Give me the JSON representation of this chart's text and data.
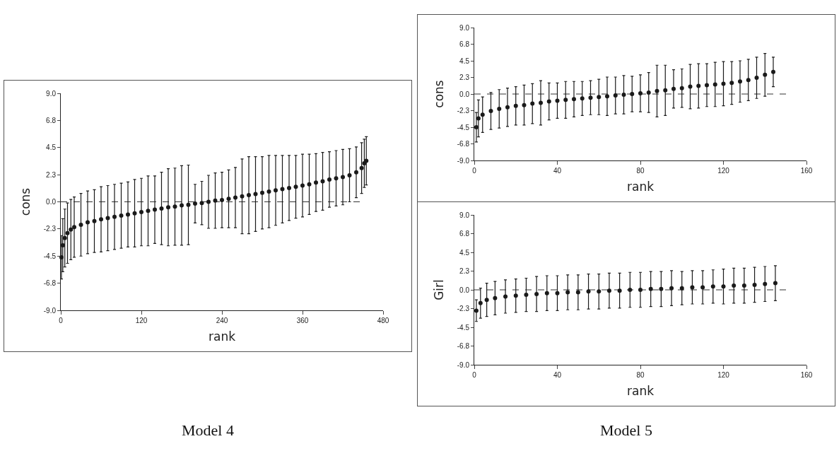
{
  "chart_data": [
    {
      "type": "scatter",
      "xlabel": "rank",
      "ylabel": "cons",
      "color": "#1a1a1a",
      "marker": "circle",
      "grid": false,
      "x": [
        1,
        3,
        6,
        10,
        15,
        20,
        30,
        40,
        50,
        60,
        70,
        80,
        90,
        100,
        110,
        120,
        130,
        140,
        150,
        160,
        170,
        180,
        190,
        200,
        210,
        220,
        230,
        240,
        250,
        260,
        270,
        280,
        290,
        300,
        310,
        320,
        330,
        340,
        350,
        360,
        370,
        380,
        390,
        400,
        410,
        420,
        430,
        440,
        448,
        452,
        455
      ],
      "values": [
        -4.6,
        -3.6,
        -3.0,
        -2.6,
        -2.3,
        -2.1,
        -1.9,
        -1.7,
        -1.6,
        -1.45,
        -1.35,
        -1.25,
        -1.15,
        -1.05,
        -0.95,
        -0.85,
        -0.75,
        -0.65,
        -0.55,
        -0.45,
        -0.4,
        -0.3,
        -0.25,
        -0.15,
        -0.1,
        0.0,
        0.1,
        0.15,
        0.25,
        0.35,
        0.45,
        0.55,
        0.65,
        0.75,
        0.85,
        0.95,
        1.05,
        1.15,
        1.25,
        1.35,
        1.45,
        1.6,
        1.7,
        1.85,
        1.95,
        2.05,
        2.2,
        2.45,
        2.8,
        3.2,
        3.4
      ],
      "errors": [
        1.8,
        2.2,
        2.4,
        2.5,
        2.5,
        2.5,
        2.6,
        2.6,
        2.6,
        2.7,
        2.7,
        2.7,
        2.7,
        2.7,
        2.8,
        2.8,
        2.9,
        2.8,
        3.0,
        3.2,
        3.2,
        3.3,
        3.3,
        1.6,
        1.8,
        2.2,
        2.3,
        2.3,
        2.4,
        2.5,
        3.1,
        3.2,
        3.1,
        3.0,
        3.0,
        2.9,
        2.8,
        2.7,
        2.6,
        2.6,
        2.5,
        2.4,
        2.4,
        2.3,
        2.3,
        2.3,
        2.2,
        2.1,
        2.1,
        2.0,
        2.0
      ],
      "xlim": [
        0,
        480
      ],
      "xticks": [
        0,
        120,
        240,
        360,
        480
      ],
      "ylim": [
        -9,
        9
      ],
      "yticks": [
        {
          "value": -9,
          "label": "-9.0"
        },
        {
          "value": -6.75,
          "label": "-6.8"
        },
        {
          "value": -4.5,
          "label": "-4.5"
        },
        {
          "value": -2.25,
          "label": "-2.3"
        },
        {
          "value": 0,
          "label": "0.0"
        },
        {
          "value": 2.25,
          "label": "2.3"
        },
        {
          "value": 4.5,
          "label": "4.5"
        },
        {
          "value": 6.75,
          "label": "6.8"
        },
        {
          "value": 9,
          "label": "9.0"
        }
      ],
      "ref_lines": [
        {
          "axis": "y",
          "value": 0,
          "line_style": "dashed",
          "color": "#333333"
        }
      ],
      "annotations": [
        "Model 4"
      ]
    },
    {
      "type": "scatter",
      "xlabel": "rank",
      "ylabel": "cons",
      "color": "#1a1a1a",
      "marker": "circle",
      "grid": false,
      "x": [
        1,
        2,
        4,
        8,
        12,
        16,
        20,
        24,
        28,
        32,
        36,
        40,
        44,
        48,
        52,
        56,
        60,
        64,
        68,
        72,
        76,
        80,
        84,
        88,
        92,
        96,
        100,
        104,
        108,
        112,
        116,
        120,
        124,
        128,
        132,
        136,
        140,
        144
      ],
      "values": [
        -4.5,
        -3.3,
        -2.8,
        -2.3,
        -2.0,
        -1.8,
        -1.6,
        -1.5,
        -1.3,
        -1.2,
        -1.0,
        -0.9,
        -0.8,
        -0.7,
        -0.6,
        -0.5,
        -0.4,
        -0.3,
        -0.2,
        -0.1,
        0.0,
        0.1,
        0.2,
        0.4,
        0.5,
        0.7,
        0.8,
        1.0,
        1.1,
        1.2,
        1.3,
        1.4,
        1.5,
        1.7,
        1.9,
        2.2,
        2.6,
        3.0
      ],
      "errors": [
        2.0,
        2.5,
        2.4,
        2.5,
        2.6,
        2.6,
        2.6,
        2.7,
        2.7,
        3.0,
        2.5,
        2.4,
        2.5,
        2.4,
        2.3,
        2.3,
        2.4,
        2.6,
        2.5,
        2.6,
        2.4,
        2.5,
        2.7,
        3.5,
        3.4,
        2.6,
        2.6,
        3.0,
        3.0,
        2.9,
        3.0,
        3.0,
        2.9,
        2.8,
        2.8,
        2.8,
        2.9,
        2.0
      ],
      "xlim": [
        0,
        160
      ],
      "xticks": [
        0,
        40,
        80,
        120,
        160
      ],
      "ylim": [
        -9,
        9
      ],
      "yticks": [
        {
          "value": -9,
          "label": "-9.0"
        },
        {
          "value": -6.75,
          "label": "-6.8"
        },
        {
          "value": -4.5,
          "label": "-4.5"
        },
        {
          "value": -2.25,
          "label": "-2.3"
        },
        {
          "value": 0,
          "label": "0.0"
        },
        {
          "value": 2.25,
          "label": "2.3"
        },
        {
          "value": 4.5,
          "label": "4.5"
        },
        {
          "value": 6.75,
          "label": "6.8"
        },
        {
          "value": 9,
          "label": "9.0"
        }
      ],
      "ref_lines": [
        {
          "axis": "y",
          "value": 0,
          "line_style": "dashed",
          "color": "#333333"
        }
      ]
    },
    {
      "type": "scatter",
      "xlabel": "rank",
      "ylabel": "Girl",
      "color": "#1a1a1a",
      "marker": "circle",
      "grid": false,
      "x": [
        1,
        3,
        6,
        10,
        15,
        20,
        25,
        30,
        35,
        40,
        45,
        50,
        55,
        60,
        65,
        70,
        75,
        80,
        85,
        90,
        95,
        100,
        105,
        110,
        115,
        120,
        125,
        130,
        135,
        140,
        145
      ],
      "values": [
        -2.5,
        -1.6,
        -1.2,
        -1.0,
        -0.8,
        -0.7,
        -0.6,
        -0.5,
        -0.4,
        -0.4,
        -0.3,
        -0.3,
        -0.2,
        -0.2,
        -0.1,
        -0.1,
        0.0,
        0.0,
        0.1,
        0.1,
        0.2,
        0.2,
        0.3,
        0.3,
        0.4,
        0.4,
        0.5,
        0.5,
        0.6,
        0.7,
        0.8
      ],
      "errors": [
        1.3,
        1.8,
        2.0,
        2.0,
        2.0,
        2.0,
        2.0,
        2.1,
        2.1,
        2.1,
        2.1,
        2.1,
        2.1,
        2.1,
        2.1,
        2.1,
        2.1,
        2.1,
        2.1,
        2.1,
        2.1,
        2.0,
        2.0,
        2.0,
        2.0,
        2.1,
        2.1,
        2.1,
        2.1,
        2.1,
        2.1
      ],
      "xlim": [
        0,
        160
      ],
      "xticks": [
        0,
        40,
        80,
        120,
        160
      ],
      "ylim": [
        -9,
        9
      ],
      "yticks": [
        {
          "value": -9,
          "label": "-9.0"
        },
        {
          "value": -6.75,
          "label": "-6.8"
        },
        {
          "value": -4.5,
          "label": "-4.5"
        },
        {
          "value": -2.25,
          "label": "-2.3"
        },
        {
          "value": 0,
          "label": "0.0"
        },
        {
          "value": 2.25,
          "label": "2.3"
        },
        {
          "value": 4.5,
          "label": "4.5"
        },
        {
          "value": 6.75,
          "label": "6.8"
        },
        {
          "value": 9,
          "label": "9.0"
        }
      ],
      "ref_lines": [
        {
          "axis": "y",
          "value": 0,
          "line_style": "dashed",
          "color": "#333333"
        }
      ],
      "annotations": [
        "Model 5"
      ]
    }
  ]
}
